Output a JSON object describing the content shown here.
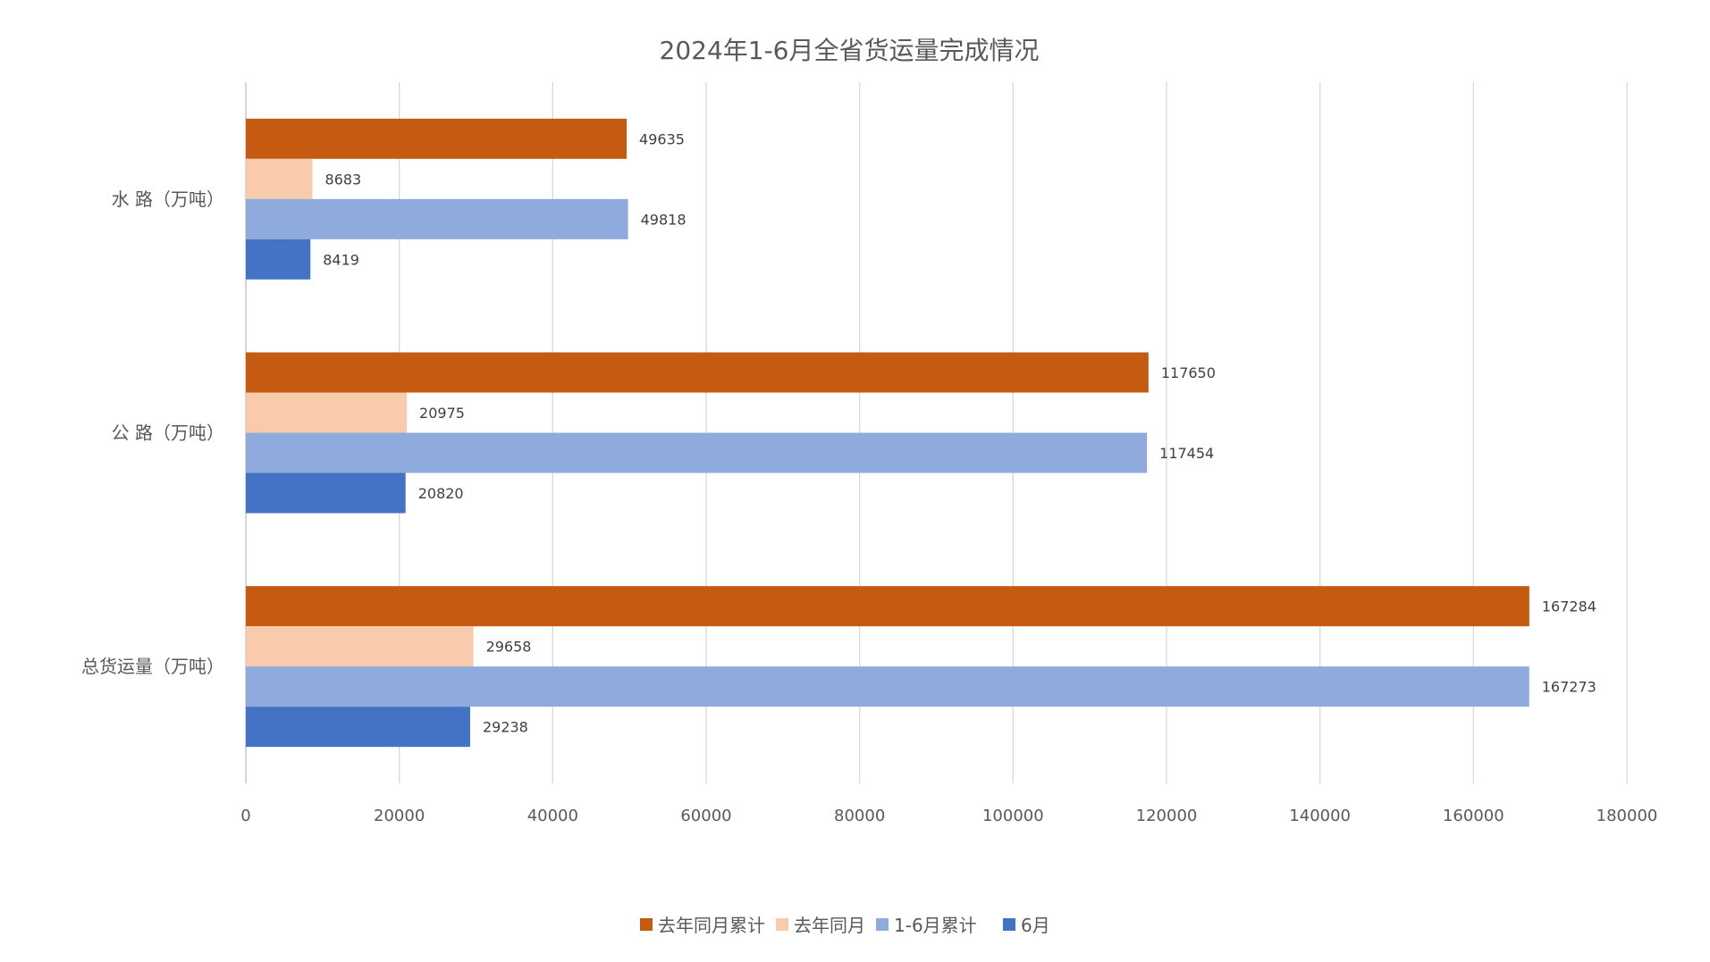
{
  "chart_data": {
    "type": "bar",
    "orientation": "horizontal",
    "title": "2024年1-6月全省货运量完成情况",
    "categories": [
      "水 路（万吨）",
      "公 路（万吨）",
      "总货运量（万吨）"
    ],
    "series": [
      {
        "name": "去年同月累计",
        "color": "#C55A11",
        "values": [
          49635,
          117650,
          167284
        ]
      },
      {
        "name": "去年同月",
        "color": "#F8CBAD",
        "values": [
          8683,
          20975,
          29658
        ]
      },
      {
        "name": "1-6月累计",
        "color": "#8FAADC",
        "values": [
          49818,
          117454,
          167273
        ]
      },
      {
        "name": "6月",
        "color": "#4472C4",
        "values": [
          8419,
          20820,
          29238
        ]
      }
    ],
    "xlim": [
      0,
      180000
    ],
    "xticks": [
      "0",
      "20000",
      "40000",
      "60000",
      "80000",
      "100000",
      "120000",
      "140000",
      "160000",
      "180000"
    ],
    "grid": true,
    "data_labels": true,
    "legend": "bottom"
  }
}
